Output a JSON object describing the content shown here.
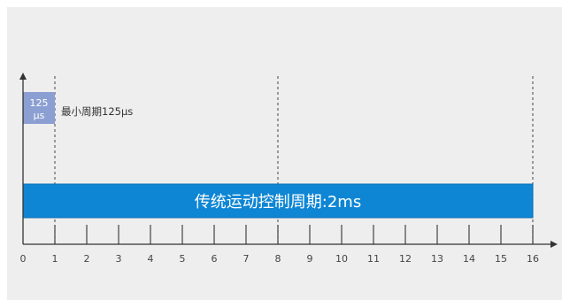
{
  "timeline": {
    "tick_labels": [
      "0",
      "1",
      "2",
      "3",
      "4",
      "5",
      "6",
      "7",
      "8",
      "9",
      "10",
      "11",
      "12",
      "13",
      "14",
      "15",
      "16"
    ],
    "dashed_marks": [
      1,
      8,
      16
    ]
  },
  "min_cycle": {
    "box_line1": "125",
    "box_line2": "µs",
    "note": "最小周期125µs",
    "box_color": "#8b9fd2"
  },
  "cycle_bar": {
    "label": "传统运动控制周期:2ms",
    "start": 0,
    "end": 16,
    "color": "#0e86d4"
  }
}
